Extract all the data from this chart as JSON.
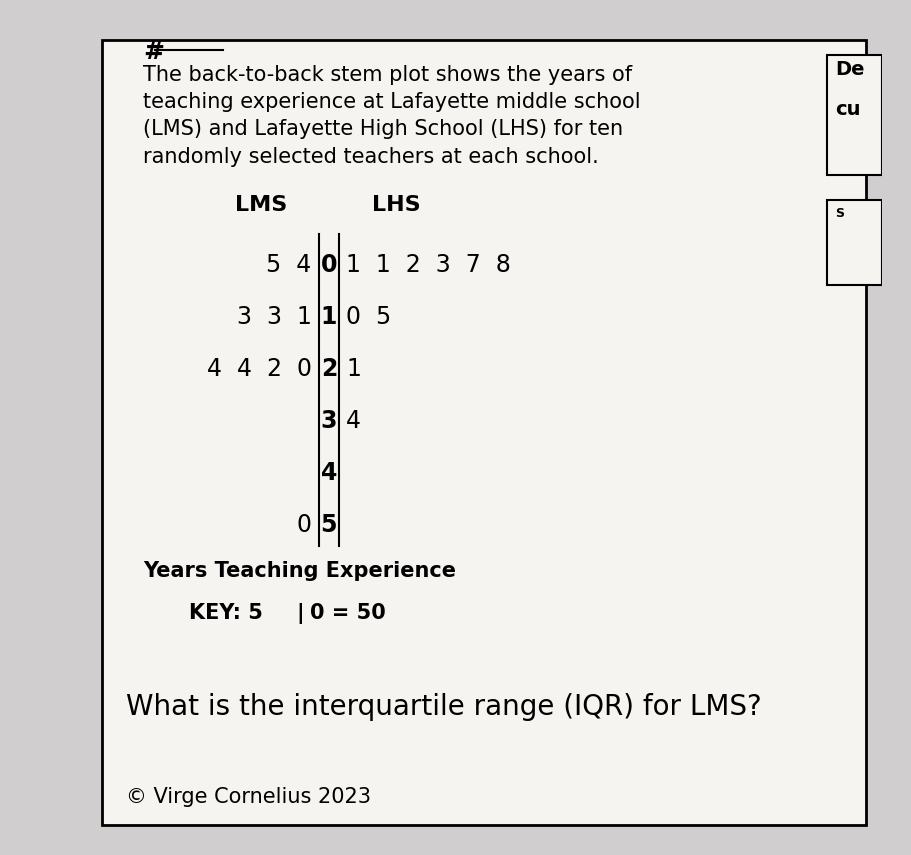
{
  "title_text": "The back-to-back stem plot shows the years of\nteaching experience at Lafayette middle school\n(LMS) and Lafayette High School (LHS) for ten\nrandomly selected teachers at each school.",
  "header_lms": "LMS",
  "header_lhs": "LHS",
  "stem_rows": [
    {
      "stem": "0",
      "lms": "5  4",
      "lhs": "1  1  2  3  7  8"
    },
    {
      "stem": "1",
      "lms": "3  3  1",
      "lhs": "0  5"
    },
    {
      "stem": "2",
      "lms": "4  4  2  0",
      "lhs": "1"
    },
    {
      "stem": "3",
      "lms": "",
      "lhs": "4"
    },
    {
      "stem": "4",
      "lms": "",
      "lhs": ""
    },
    {
      "stem": "5",
      "lms": "0",
      "lhs": ""
    }
  ],
  "label": "Years Teaching Experience",
  "key_text": "KEY: 5⁈0 = 50",
  "question": "What is the interquartile range (IQR) for LMS?",
  "corner_label": "#",
  "copyright": "© Virge Cornelius 2023",
  "bg_color": "#d0cece",
  "paper_color": "#f5f4f0",
  "border_color": "#000000",
  "text_color": "#000000",
  "side_label_de": "De",
  "side_label_cu": "cu"
}
